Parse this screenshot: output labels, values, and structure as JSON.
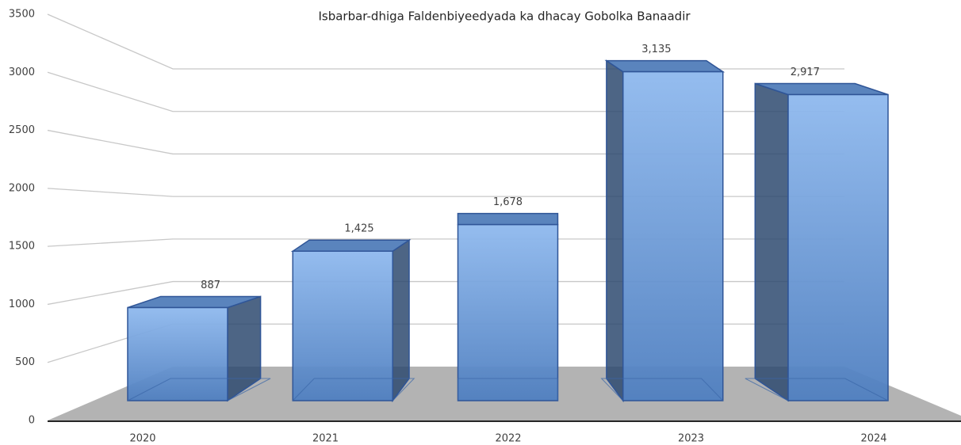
{
  "chart_data": {
    "type": "bar3d",
    "title": "Isbarbar-dhiga Faldenbiyeedyada ka dhacay Gobolka Banaadir",
    "categories": [
      "2020",
      "2021",
      "2022",
      "2023",
      "2024"
    ],
    "values": [
      887,
      1425,
      1678,
      3135,
      2917
    ],
    "value_labels": [
      "887",
      "1,425",
      "1,678",
      "3,135",
      "2,917"
    ],
    "color": "#5b8fd4",
    "ylim": [
      0,
      3500
    ],
    "yticks": [
      0,
      500,
      1000,
      1500,
      2000,
      2500,
      3000,
      3500
    ],
    "grid": true
  }
}
